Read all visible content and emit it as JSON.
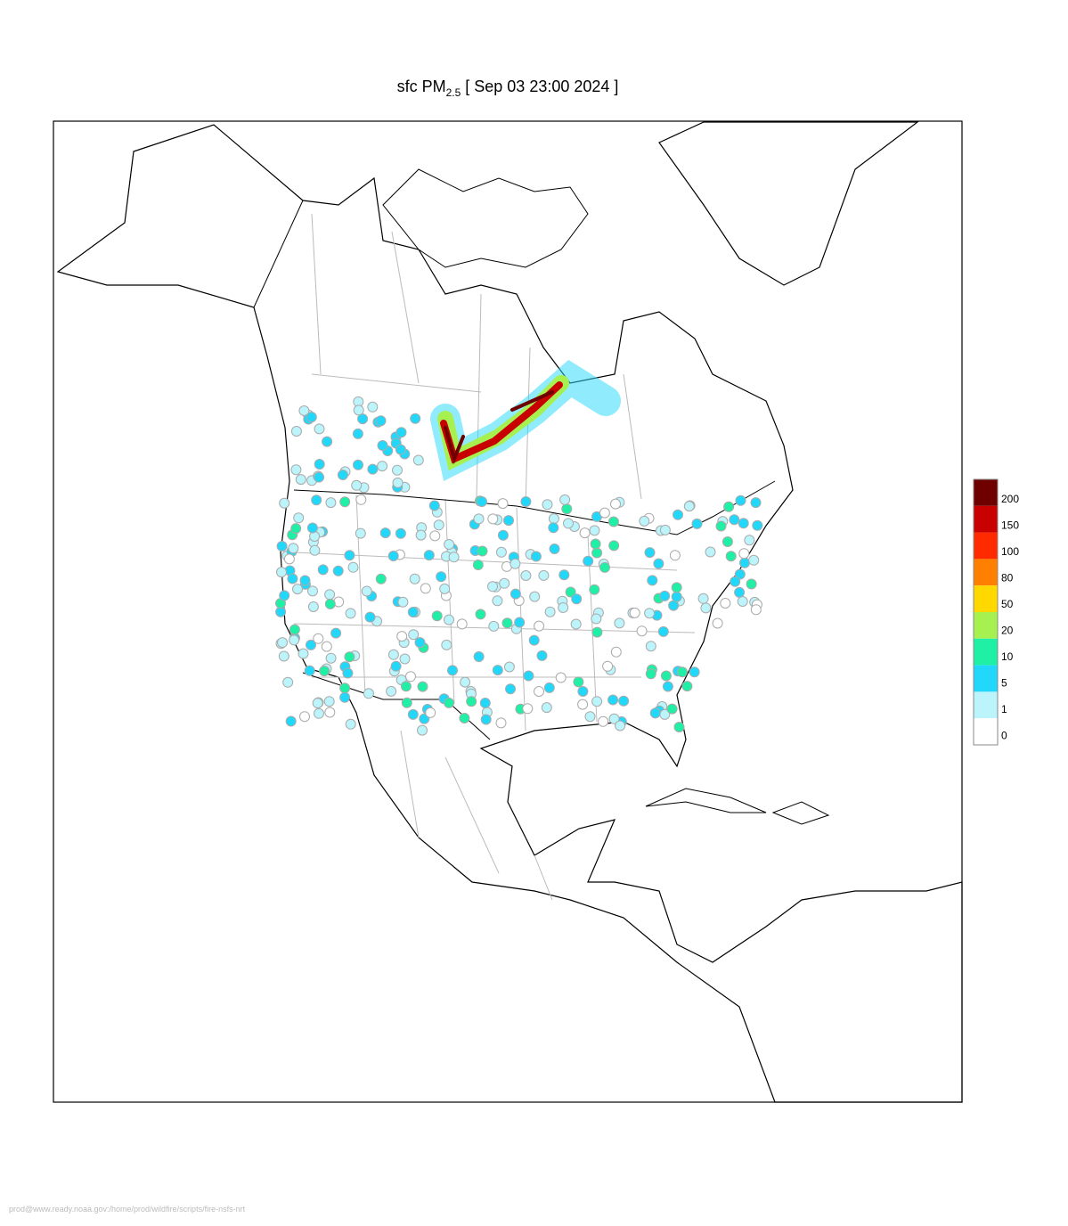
{
  "title": {
    "prefix": "sfc PM",
    "subscript": "2.5",
    "suffix": " [ Sep 03 23:00 2024 ]"
  },
  "legend": {
    "levels": [
      200,
      150,
      100,
      80,
      50,
      20,
      10,
      5,
      1,
      0
    ],
    "colors": [
      "#6e0000",
      "#c80000",
      "#ff2a00",
      "#ff8000",
      "#ffd800",
      "#a6f050",
      "#20f0a6",
      "#22d8fa",
      "#bcf4fc",
      "#ffffff"
    ]
  },
  "footer": "prod@www.ready.noaa.gov:/home/prod/wildfire/scripts/fire-nsfs-nrt"
}
